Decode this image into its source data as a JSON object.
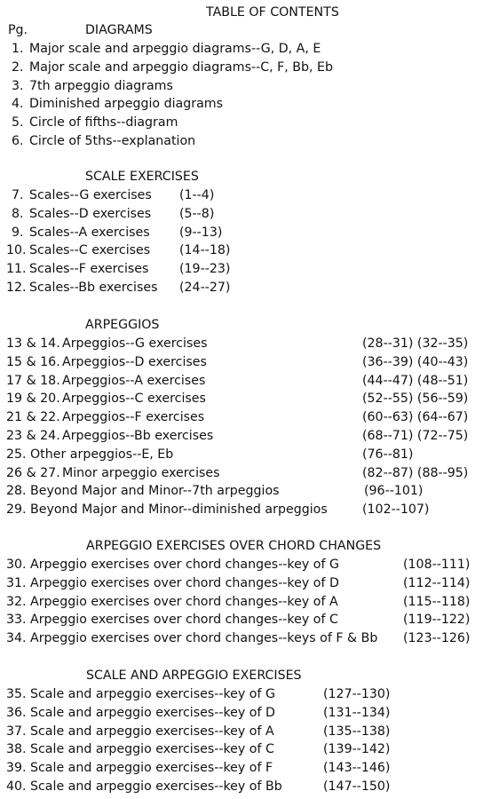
{
  "title": "TABLE OF CONTENTS",
  "pg_label": "Pg.",
  "sections": [
    {
      "heading": "DIAGRAMS",
      "entries": [
        {
          "num": "1.",
          "label": "Major scale and arpeggio diagrams--G, D, A, E",
          "range": ""
        },
        {
          "num": "2.",
          "label": "Major scale and arpeggio diagrams--C, F, Bb, Eb",
          "range": ""
        },
        {
          "num": "3.",
          "label": "7th arpeggio diagrams",
          "range": ""
        },
        {
          "num": "4.",
          "label": "Diminished arpeggio diagrams",
          "range": ""
        },
        {
          "num": "5.",
          "label": "Circle of fifths--diagram",
          "range": ""
        },
        {
          "num": "6.",
          "label": "Circle of 5ths--explanation",
          "range": ""
        }
      ]
    },
    {
      "heading": "SCALE EXERCISES",
      "entries": [
        {
          "num": "7.",
          "label": "Scales--G exercises",
          "range": "(1--4)"
        },
        {
          "num": "8.",
          "label": "Scales--D exercises",
          "range": "(5--8)"
        },
        {
          "num": "9.",
          "label": "Scales--A exercises",
          "range": "(9--13)"
        },
        {
          "num": "10.",
          "label": "Scales--C exercises",
          "range": "(14--18)"
        },
        {
          "num": "11.",
          "label": "Scales--F exercises",
          "range": "(19--23)"
        },
        {
          "num": "12.",
          "label": "Scales--Bb exercises",
          "range": "(24--27)"
        }
      ]
    },
    {
      "heading": "ARPEGGIOS",
      "entries": [
        {
          "num": "13 & 14.",
          "label": "Arpeggios--G exercises",
          "range": "(28--31) (32--35)"
        },
        {
          "num": "15 & 16.",
          "label": "Arpeggios--D exercises",
          "range": "(36--39) (40--43)"
        },
        {
          "num": "17 & 18.",
          "label": "Arpeggios--A exercises",
          "range": "(44--47) (48--51)"
        },
        {
          "num": "19 & 20.",
          "label": "Arpeggios--C exercises",
          "range": "(52--55) (56--59)"
        },
        {
          "num": "21 & 22.",
          "label": "Arpeggios--F exercises",
          "range": "(60--63) (64--67)"
        },
        {
          "num": "23 & 24.",
          "label": "Arpeggios--Bb exercises",
          "range": "(68--71) (72--75)"
        },
        {
          "num": "25.",
          "label": "Other arpeggios--E, Eb",
          "range": "(76--81)"
        },
        {
          "num": "26 & 27.",
          "label": "Minor arpeggio exercises",
          "range": "(82--87) (88--95)"
        },
        {
          "num": "28.",
          "label": "Beyond Major and Minor--7th arpeggios",
          "range": "(96--101)"
        },
        {
          "num": "29.",
          "label": "Beyond Major and Minor--diminished arpeggios",
          "range": "(102--107)"
        }
      ]
    },
    {
      "heading": "ARPEGGIO EXERCISES OVER CHORD CHANGES",
      "entries": [
        {
          "num": "30.",
          "label": "Arpeggio exercises over chord changes--key of G",
          "range": "(108--111)"
        },
        {
          "num": "31.",
          "label": "Arpeggio exercises over chord changes--key of D",
          "range": "(112--114)"
        },
        {
          "num": "32.",
          "label": "Arpeggio exercises over chord changes--key of A",
          "range": "(115--118)"
        },
        {
          "num": "33.",
          "label": "Arpeggio exercises over chord changes--key of C",
          "range": "(119--122)"
        },
        {
          "num": "34.",
          "label": "Arpeggio exercises over chord changes--keys of F & Bb",
          "range": "(123--126)"
        }
      ]
    },
    {
      "heading": "SCALE AND ARPEGGIO EXERCISES",
      "entries": [
        {
          "num": "35.",
          "label": "Scale and arpeggio exercises--key of G",
          "range": "(127--130)"
        },
        {
          "num": "36.",
          "label": "Scale and arpeggio exercises--key of D",
          "range": "(131--134)"
        },
        {
          "num": "37.",
          "label": "Scale and arpeggio exercises--key of A",
          "range": "(135--138)"
        },
        {
          "num": "38.",
          "label": "Scale and arpeggio exercises--key of C",
          "range": "(139--142)"
        },
        {
          "num": "39.",
          "label": "Scale and arpeggio exercises--key of F",
          "range": "(143--146)"
        },
        {
          "num": "40.",
          "label": "Scale and arpeggio exercises--key of Bb",
          "range": "(147--150)"
        }
      ]
    }
  ]
}
